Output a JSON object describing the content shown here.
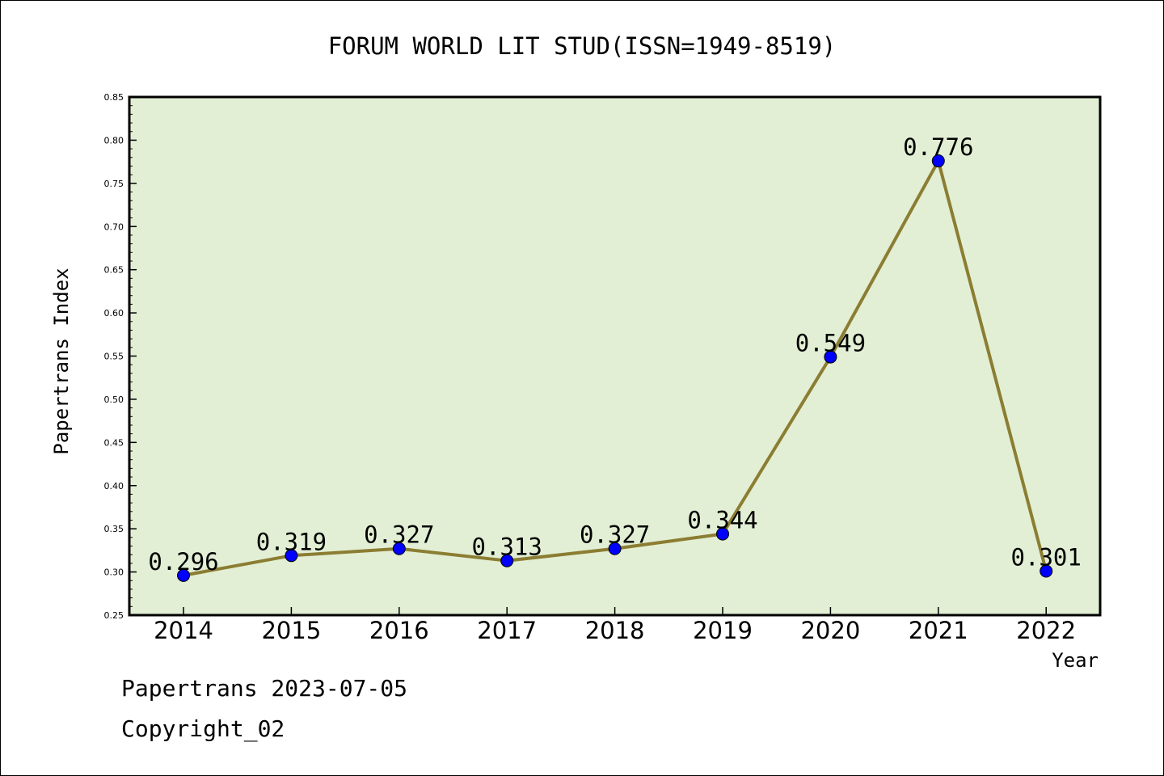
{
  "chart_data": {
    "type": "line",
    "title": "FORUM WORLD LIT STUD(ISSN=1949-8519)",
    "xlabel": "Year",
    "ylabel": "Papertrans Index",
    "categories": [
      "2014",
      "2015",
      "2016",
      "2017",
      "2018",
      "2019",
      "2020",
      "2021",
      "2022"
    ],
    "values": [
      0.296,
      0.319,
      0.327,
      0.313,
      0.327,
      0.344,
      0.549,
      0.776,
      0.301
    ],
    "data_labels": [
      "0.296",
      "0.319",
      "0.327",
      "0.313",
      "0.327",
      "0.344",
      "0.549",
      "0.776",
      "0.301"
    ],
    "ylim": [
      0.25,
      0.85
    ],
    "yticks": [
      "0.25",
      "0.30",
      "0.35",
      "0.40",
      "0.45",
      "0.50",
      "0.55",
      "0.60",
      "0.65",
      "0.70",
      "0.75",
      "0.80",
      "0.85"
    ],
    "grid": false,
    "colors": {
      "plot_background": "#e2efd4",
      "line": "#8b7d32",
      "marker": "#0000ff"
    }
  },
  "footer": {
    "line1": "Papertrans 2023-07-05",
    "line2": "Copyright_02"
  }
}
